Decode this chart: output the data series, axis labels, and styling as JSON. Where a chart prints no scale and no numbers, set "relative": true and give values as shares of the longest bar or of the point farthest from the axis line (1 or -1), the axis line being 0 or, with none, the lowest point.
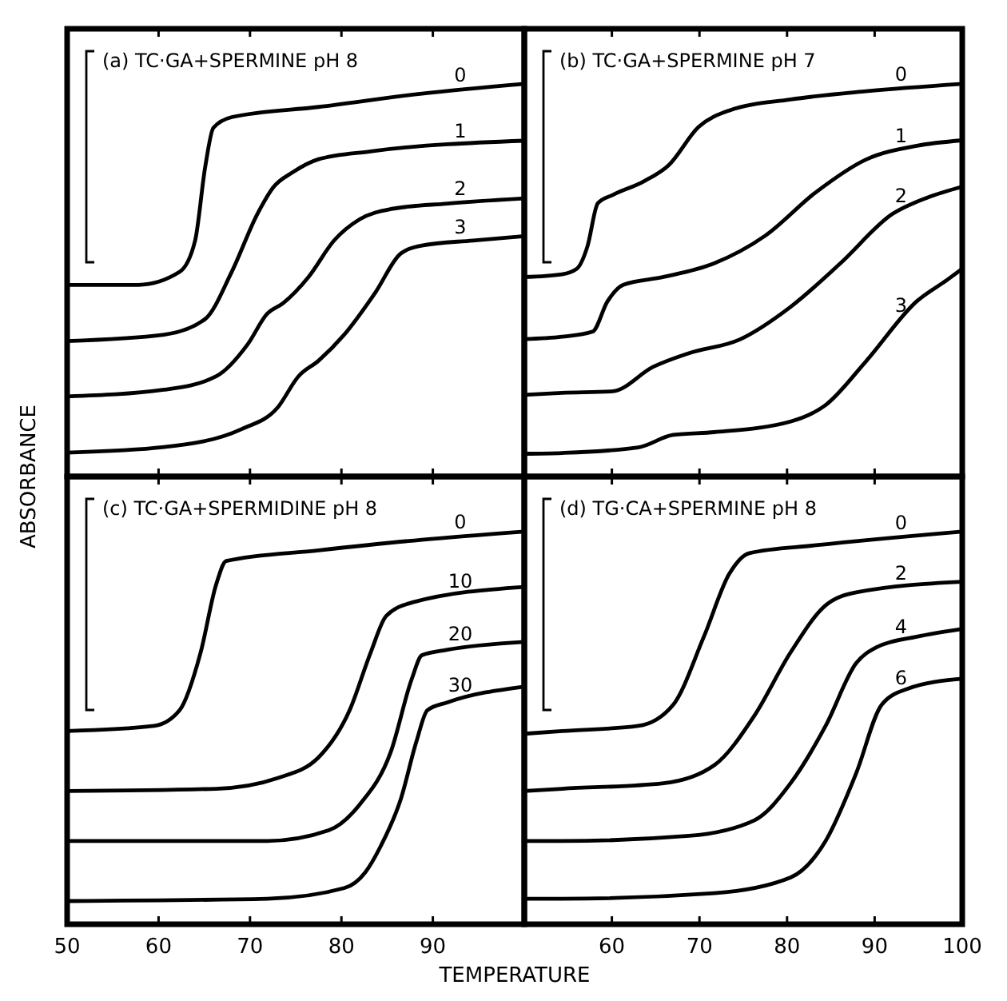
{
  "chart_data": [
    {
      "type": "line",
      "title": "(a) TC·GA+SPERMINE pH 8",
      "ylabel": "ABSORBANCE",
      "relative": true,
      "xlim": [
        50,
        100
      ],
      "xticks": [
        50,
        60,
        70,
        80,
        90
      ],
      "tick_labels": false,
      "series": [
        {
          "name": "0",
          "color": "#000000",
          "x": [
            50,
            57.8,
            62.3,
            64.0,
            65.1,
            66.0,
            68.0,
            77.5,
            88.8,
            100
          ],
          "values": [
            0.488,
            0.488,
            0.521,
            0.601,
            0.788,
            0.888,
            0.915,
            0.941,
            0.975,
            1
          ]
        },
        {
          "name": "1",
          "color": "#000000",
          "x": [
            50,
            60.6,
            65.1,
            68.0,
            70.8,
            72.5,
            74.7,
            77.5,
            83.2,
            100
          ],
          "values": [
            0.345,
            0.361,
            0.401,
            0.521,
            0.668,
            0.735,
            0.775,
            0.808,
            0.828,
            0.855
          ]
        },
        {
          "name": "2",
          "color": "#000000",
          "x": [
            50,
            60.6,
            66.3,
            69.7,
            71.9,
            73.6,
            76.4,
            79.2,
            82.0,
            85.4,
            91.6,
            100
          ],
          "values": [
            0.204,
            0.221,
            0.255,
            0.335,
            0.415,
            0.441,
            0.508,
            0.601,
            0.655,
            0.681,
            0.695,
            0.708
          ]
        },
        {
          "name": "3",
          "color": "#000000",
          "x": [
            50,
            60.6,
            69.1,
            73.0,
            75.3,
            77.5,
            80.3,
            83.7,
            86.5,
            88.8,
            94.4,
            100
          ],
          "values": [
            0.061,
            0.075,
            0.121,
            0.175,
            0.255,
            0.295,
            0.361,
            0.468,
            0.568,
            0.588,
            0.601,
            0.612
          ]
        }
      ]
    },
    {
      "type": "line",
      "title": "(b) TC·GA+SPERMINE pH 7",
      "relative": true,
      "xlim": [
        50,
        100
      ],
      "xticks": [
        60,
        70,
        80,
        90,
        100
      ],
      "tick_labels": false,
      "series": [
        {
          "name": "0",
          "color": "#000000",
          "x": [
            50,
            54.3,
            56.0,
            57.2,
            58.4,
            60.1,
            63.6,
            66.5,
            69.9,
            73.4,
            80.4,
            89.0,
            100
          ],
          "values": [
            0.508,
            0.515,
            0.529,
            0.585,
            0.696,
            0.717,
            0.751,
            0.793,
            0.89,
            0.932,
            0.96,
            0.981,
            1
          ]
        },
        {
          "name": "1",
          "color": "#000000",
          "x": [
            50,
            54.3,
            57.8,
            59.5,
            61.3,
            65.9,
            71.7,
            77.5,
            83.3,
            89.0,
            94.8,
            100
          ],
          "values": [
            0.35,
            0.356,
            0.369,
            0.446,
            0.488,
            0.508,
            0.543,
            0.613,
            0.724,
            0.807,
            0.842,
            0.856
          ]
        },
        {
          "name": "2",
          "color": "#000000",
          "x": [
            50,
            54.3,
            60.1,
            64.7,
            68.8,
            74.6,
            80.4,
            86.1,
            92.0,
            96.0,
            100
          ],
          "values": [
            0.208,
            0.213,
            0.217,
            0.279,
            0.314,
            0.349,
            0.432,
            0.543,
            0.668,
            0.71,
            0.738
          ]
        },
        {
          "name": "3",
          "color": "#000000",
          "x": [
            50,
            54.3,
            63.0,
            67.0,
            71.7,
            80.4,
            84.4,
            89.0,
            94.8,
            98.3,
            100
          ],
          "values": [
            0.058,
            0.06,
            0.074,
            0.106,
            0.113,
            0.14,
            0.182,
            0.293,
            0.446,
            0.501,
            0.529
          ]
        }
      ]
    },
    {
      "type": "line",
      "title": "(c) TC·GA+SPERMIDINE pH 8",
      "xlabel": "TEMPERATURE",
      "relative": true,
      "xlim": [
        50,
        100
      ],
      "xticks": [
        50,
        60,
        70,
        80,
        90
      ],
      "tick_labels": "x",
      "series": [
        {
          "name": "0",
          "color": "#000000",
          "x": [
            50,
            59.5,
            62.3,
            64.6,
            66.3,
            67.4,
            77.5,
            88.8,
            100
          ],
          "values": [
            0.492,
            0.505,
            0.545,
            0.692,
            0.865,
            0.925,
            0.952,
            0.979,
            1
          ]
        },
        {
          "name": "10",
          "color": "#000000",
          "x": [
            50,
            66.3,
            73.0,
            77.5,
            80.9,
            83.2,
            84.9,
            87.7,
            100
          ],
          "values": [
            0.339,
            0.345,
            0.372,
            0.425,
            0.545,
            0.692,
            0.785,
            0.819,
            0.859
          ]
        },
        {
          "name": "20",
          "color": "#000000",
          "x": [
            50,
            71.9,
            78.6,
            82.0,
            85.4,
            87.7,
            88.8,
            91.6,
            100
          ],
          "values": [
            0.212,
            0.212,
            0.239,
            0.305,
            0.439,
            0.625,
            0.685,
            0.699,
            0.719
          ]
        },
        {
          "name": "30",
          "color": "#000000",
          "x": [
            50,
            71.9,
            80.3,
            82.6,
            84.3,
            86.5,
            88.2,
            89.4,
            91.6,
            100
          ],
          "values": [
            0.059,
            0.065,
            0.092,
            0.132,
            0.199,
            0.319,
            0.465,
            0.545,
            0.565,
            0.605
          ]
        }
      ]
    },
    {
      "type": "line",
      "title": "(d) TG·CA+SPERMINE pH 8",
      "relative": true,
      "xlim": [
        50,
        100
      ],
      "xticks": [
        60,
        70,
        80,
        90,
        100
      ],
      "tick_labels": "x",
      "series": [
        {
          "name": "0",
          "color": "#000000",
          "x": [
            50,
            54.3,
            63.0,
            67.0,
            70.5,
            73.4,
            75.7,
            83.3,
            100
          ],
          "values": [
            0.485,
            0.492,
            0.505,
            0.559,
            0.732,
            0.892,
            0.945,
            0.965,
            1
          ]
        },
        {
          "name": "2",
          "color": "#000000",
          "x": [
            50,
            54.3,
            65.9,
            71.7,
            76.3,
            80.4,
            84.4,
            87.9,
            100
          ],
          "values": [
            0.339,
            0.345,
            0.359,
            0.405,
            0.532,
            0.692,
            0.812,
            0.845,
            0.872
          ]
        },
        {
          "name": "4",
          "color": "#000000",
          "x": [
            50,
            54.3,
            68.8,
            76.3,
            80.4,
            84.4,
            87.9,
            90.2,
            94.8,
            100
          ],
          "values": [
            0.212,
            0.212,
            0.225,
            0.265,
            0.359,
            0.505,
            0.665,
            0.705,
            0.732,
            0.752
          ]
        },
        {
          "name": "6",
          "color": "#000000",
          "x": [
            50,
            54.3,
            71.7,
            80.4,
            84.4,
            87.9,
            90.8,
            93.7,
            100
          ],
          "values": [
            0.065,
            0.065,
            0.079,
            0.119,
            0.212,
            0.385,
            0.559,
            0.599,
            0.625
          ]
        }
      ]
    }
  ]
}
